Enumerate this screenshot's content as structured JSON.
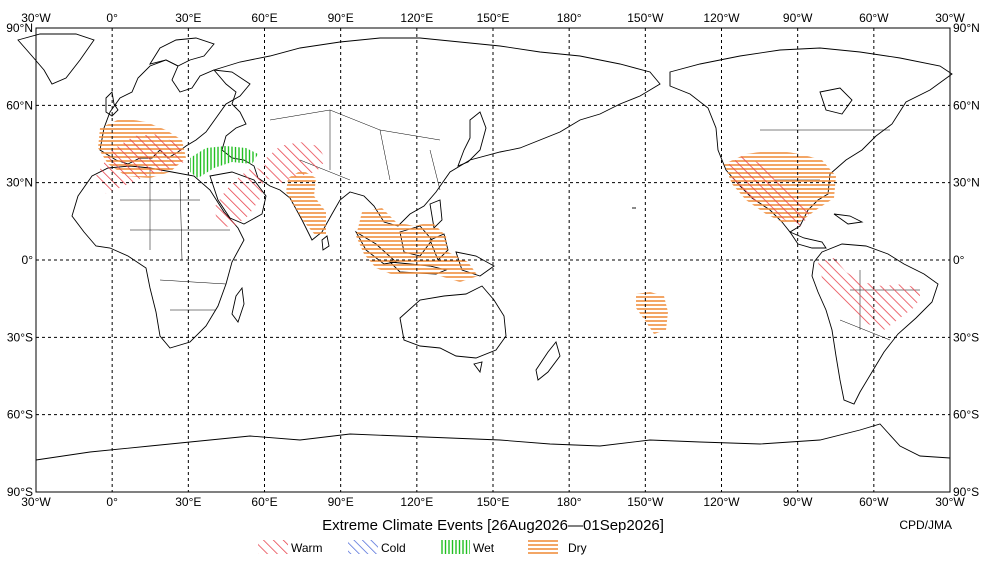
{
  "map": {
    "title": "Extreme Climate Events [26Aug2026—01Sep2026]",
    "credit": "CPD/JMA",
    "lon_labels": [
      "30°W",
      "0°",
      "30°E",
      "60°E",
      "90°E",
      "120°E",
      "150°E",
      "180°",
      "150°W",
      "120°W",
      "90°W",
      "60°W",
      "30°W"
    ],
    "lat_labels": [
      "90°N",
      "60°N",
      "30°N",
      "0°",
      "30°S",
      "60°S",
      "90°S"
    ],
    "legend": [
      {
        "key": "warm",
        "label": "Warm",
        "color": "#e8454f"
      },
      {
        "key": "cold",
        "label": "Cold",
        "color": "#3b5bd6"
      },
      {
        "key": "wet",
        "label": "Wet",
        "color": "#22c022"
      },
      {
        "key": "dry",
        "label": "Dry",
        "color": "#f09040"
      }
    ]
  }
}
